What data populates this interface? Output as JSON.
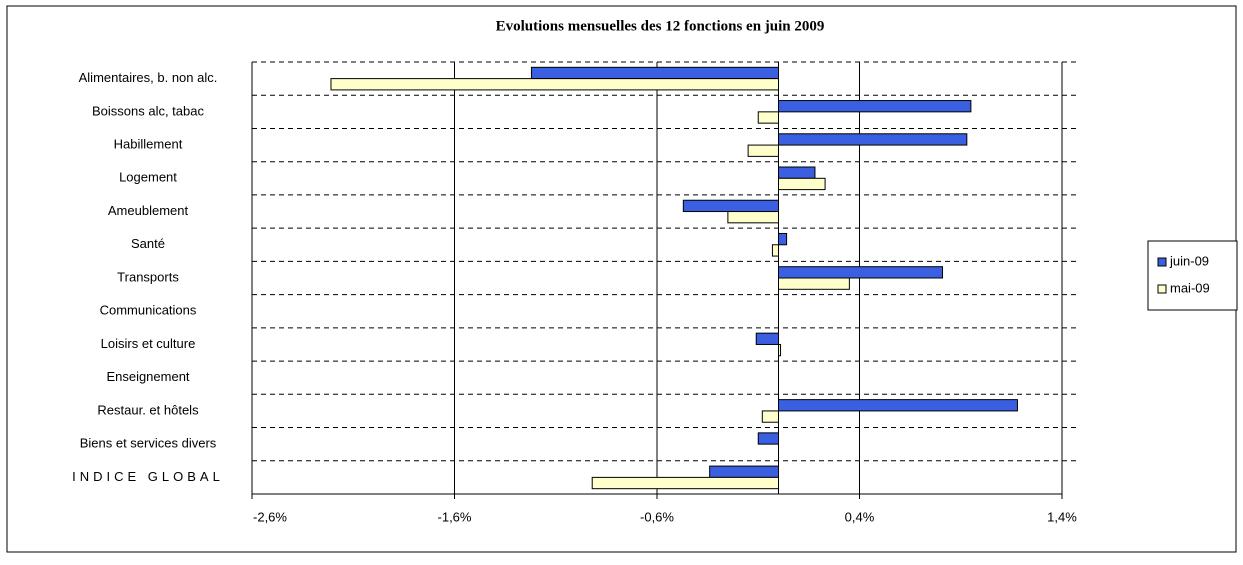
{
  "chart_data": {
    "type": "hbar",
    "title": "Evolutions mensuelles des 12 fonctions en juin 2009",
    "categories": [
      "Alimentaires, b. non alc.",
      "Boissons alc, tabac",
      "Habillement",
      "Logement",
      "Ameublement",
      "Santé",
      "Transports",
      "Communications",
      "Loisirs et culture",
      "Enseignement",
      "Restaur. et hôtels",
      "Biens et services divers",
      "INDICE GLOBAL"
    ],
    "series": [
      {
        "name": "juin-09",
        "color": "#3a5fe0",
        "values": [
          -1.22,
          0.95,
          0.93,
          0.18,
          -0.47,
          0.04,
          0.81,
          0,
          -0.11,
          0,
          1.18,
          -0.1,
          -0.34
        ]
      },
      {
        "name": "mai-09",
        "color": "#ffffcc",
        "values": [
          -2.21,
          -0.1,
          -0.15,
          0.23,
          -0.25,
          -0.03,
          0.35,
          0,
          0.01,
          0,
          -0.08,
          0,
          -0.92
        ]
      }
    ],
    "xlim": [
      -2.6,
      1.4
    ],
    "xticks": [
      {
        "value": -2.6,
        "label": "-2,6%"
      },
      {
        "value": -1.6,
        "label": "-1,6%"
      },
      {
        "value": -0.6,
        "label": "-0,6%"
      },
      {
        "value": 0.4,
        "label": "0,4%"
      },
      {
        "value": 1.4,
        "label": "1,4%"
      }
    ],
    "grid": true
  }
}
